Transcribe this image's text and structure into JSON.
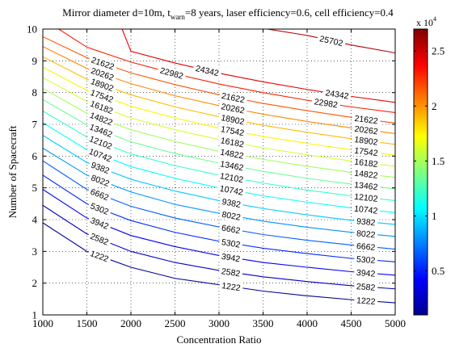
{
  "chart_data": {
    "type": "contour",
    "title": {
      "pre": "Mirror diameter d=10m, t",
      "sub": "warn",
      "post": "=8 years, laser efficiency=0.6, cell efficiency=0.4"
    },
    "xlabel": "Concentration Ratio",
    "ylabel": "Number of Spacecraft",
    "xlim": [
      1000,
      5000
    ],
    "ylim": [
      1,
      10
    ],
    "xticks": [
      "1000",
      "1500",
      "2000",
      "2500",
      "3000",
      "3500",
      "4000",
      "4500",
      "5000"
    ],
    "yticks": [
      "1",
      "2",
      "3",
      "4",
      "5",
      "6",
      "7",
      "8",
      "9",
      "10"
    ],
    "grid": true,
    "colorbar": {
      "exponent_label": "x 10",
      "exponent": "4",
      "range": [
        0.1,
        2.7
      ],
      "ticks": [
        "0.5",
        "1",
        "1.5",
        "2",
        "2.5"
      ],
      "colormap": [
        "#00008f",
        "#0000ff",
        "#0080ff",
        "#00ffff",
        "#80ff80",
        "#ffff00",
        "#ff8000",
        "#ff0000",
        "#800000"
      ]
    },
    "levels": [
      1222,
      2582,
      3942,
      5302,
      6662,
      8022,
      9382,
      10742,
      12102,
      13462,
      14822,
      16182,
      17542,
      18902,
      20262,
      21622,
      22982,
      24342,
      25702
    ],
    "contours": [
      {
        "level": 1222,
        "labels": [
          "1222",
          "1222",
          "1222"
        ],
        "points": [
          [
            1000,
            3.9
          ],
          [
            1500,
            3.0
          ],
          [
            2000,
            2.5
          ],
          [
            2500,
            2.15
          ],
          [
            3000,
            1.95
          ],
          [
            3500,
            1.75
          ],
          [
            4000,
            1.6
          ],
          [
            4500,
            1.48
          ],
          [
            5000,
            1.38
          ]
        ]
      },
      {
        "level": 2582,
        "labels": [
          "2582",
          "2582",
          "2582"
        ],
        "points": [
          [
            1000,
            4.45
          ],
          [
            1500,
            3.55
          ],
          [
            2000,
            3.0
          ],
          [
            2500,
            2.65
          ],
          [
            3000,
            2.4
          ],
          [
            3500,
            2.2
          ],
          [
            4000,
            2.05
          ],
          [
            4500,
            1.92
          ],
          [
            5000,
            1.82
          ]
        ]
      },
      {
        "level": 3942,
        "labels": [
          "3942",
          "3942",
          "3942"
        ],
        "points": [
          [
            1000,
            4.95
          ],
          [
            1500,
            4.05
          ],
          [
            2000,
            3.5
          ],
          [
            2500,
            3.15
          ],
          [
            3000,
            2.87
          ],
          [
            3500,
            2.65
          ],
          [
            4000,
            2.5
          ],
          [
            4500,
            2.36
          ],
          [
            5000,
            2.25
          ]
        ]
      },
      {
        "level": 5302,
        "labels": [
          "5302",
          "5302",
          "5302"
        ],
        "points": [
          [
            1000,
            5.4
          ],
          [
            1500,
            4.5
          ],
          [
            2000,
            3.97
          ],
          [
            2500,
            3.6
          ],
          [
            3000,
            3.32
          ],
          [
            3500,
            3.1
          ],
          [
            4000,
            2.93
          ],
          [
            4500,
            2.78
          ],
          [
            5000,
            2.67
          ]
        ]
      },
      {
        "level": 6662,
        "labels": [
          "6662",
          "6662",
          "6662"
        ],
        "points": [
          [
            1000,
            5.85
          ],
          [
            1500,
            4.95
          ],
          [
            2000,
            4.42
          ],
          [
            2500,
            4.05
          ],
          [
            3000,
            3.77
          ],
          [
            3500,
            3.53
          ],
          [
            4000,
            3.35
          ],
          [
            4500,
            3.2
          ],
          [
            5000,
            3.07
          ]
        ]
      },
      {
        "level": 8022,
        "labels": [
          "8022",
          "8022",
          "8022"
        ],
        "points": [
          [
            1000,
            6.25
          ],
          [
            1500,
            5.4
          ],
          [
            2000,
            4.87
          ],
          [
            2500,
            4.48
          ],
          [
            3000,
            4.2
          ],
          [
            3500,
            3.95
          ],
          [
            4000,
            3.76
          ],
          [
            4500,
            3.6
          ],
          [
            5000,
            3.47
          ]
        ]
      },
      {
        "level": 9382,
        "labels": [
          "9382",
          "9382",
          "9382"
        ],
        "points": [
          [
            1000,
            6.65
          ],
          [
            1500,
            5.8
          ],
          [
            2000,
            5.27
          ],
          [
            2500,
            4.9
          ],
          [
            3000,
            4.6
          ],
          [
            3500,
            4.35
          ],
          [
            4000,
            4.15
          ],
          [
            4500,
            3.98
          ],
          [
            5000,
            3.85
          ]
        ]
      },
      {
        "level": 10742,
        "labels": [
          "10742",
          "10742",
          "10742"
        ],
        "points": [
          [
            1000,
            7.05
          ],
          [
            1500,
            6.2
          ],
          [
            2000,
            5.67
          ],
          [
            2500,
            5.3
          ],
          [
            3000,
            5.0
          ],
          [
            3500,
            4.75
          ],
          [
            4000,
            4.55
          ],
          [
            4500,
            4.37
          ],
          [
            5000,
            4.22
          ]
        ]
      },
      {
        "level": 12102,
        "labels": [
          "12102",
          "12102",
          "12102"
        ],
        "points": [
          [
            1000,
            7.42
          ],
          [
            1500,
            6.6
          ],
          [
            2000,
            6.07
          ],
          [
            2500,
            5.7
          ],
          [
            3000,
            5.4
          ],
          [
            3500,
            5.15
          ],
          [
            4000,
            4.93
          ],
          [
            4500,
            4.75
          ],
          [
            5000,
            4.6
          ]
        ]
      },
      {
        "level": 13462,
        "labels": [
          "13462",
          "13462",
          "13462"
        ],
        "points": [
          [
            1000,
            7.78
          ],
          [
            1500,
            6.98
          ],
          [
            2000,
            6.45
          ],
          [
            2500,
            6.08
          ],
          [
            3000,
            5.78
          ],
          [
            3500,
            5.52
          ],
          [
            4000,
            5.3
          ],
          [
            4500,
            5.12
          ],
          [
            5000,
            4.97
          ]
        ]
      },
      {
        "level": 14822,
        "labels": [
          "14822",
          "14822",
          "14822"
        ],
        "points": [
          [
            1000,
            8.13
          ],
          [
            1500,
            7.35
          ],
          [
            2000,
            6.83
          ],
          [
            2500,
            6.46
          ],
          [
            3000,
            6.15
          ],
          [
            3500,
            5.9
          ],
          [
            4000,
            5.68
          ],
          [
            4500,
            5.49
          ],
          [
            5000,
            5.33
          ]
        ]
      },
      {
        "level": 16182,
        "labels": [
          "16182",
          "16182",
          "16182"
        ],
        "points": [
          [
            1000,
            8.47
          ],
          [
            1500,
            7.72
          ],
          [
            2000,
            7.2
          ],
          [
            2500,
            6.83
          ],
          [
            3000,
            6.52
          ],
          [
            3500,
            6.26
          ],
          [
            4000,
            6.04
          ],
          [
            4500,
            5.85
          ],
          [
            5000,
            5.68
          ]
        ]
      },
      {
        "level": 17542,
        "labels": [
          "17542",
          "17542",
          "17542"
        ],
        "points": [
          [
            1000,
            8.8
          ],
          [
            1500,
            8.07
          ],
          [
            2000,
            7.57
          ],
          [
            2500,
            7.2
          ],
          [
            3000,
            6.88
          ],
          [
            3500,
            6.62
          ],
          [
            4000,
            6.4
          ],
          [
            4500,
            6.2
          ],
          [
            5000,
            6.03
          ]
        ]
      },
      {
        "level": 18902,
        "labels": [
          "18902",
          "18902",
          "18902"
        ],
        "points": [
          [
            1000,
            9.13
          ],
          [
            1500,
            8.42
          ],
          [
            2000,
            7.93
          ],
          [
            2500,
            7.55
          ],
          [
            3000,
            7.24
          ],
          [
            3500,
            6.97
          ],
          [
            4000,
            6.75
          ],
          [
            4500,
            6.55
          ],
          [
            5000,
            6.37
          ]
        ]
      },
      {
        "level": 20262,
        "labels": [
          "20262",
          "20262",
          "20262"
        ],
        "points": [
          [
            1000,
            9.45
          ],
          [
            1500,
            8.76
          ],
          [
            2000,
            8.28
          ],
          [
            2500,
            7.9
          ],
          [
            3000,
            7.59
          ],
          [
            3500,
            7.32
          ],
          [
            4000,
            7.09
          ],
          [
            4500,
            6.89
          ],
          [
            5000,
            6.71
          ]
        ]
      },
      {
        "level": 21622,
        "labels": [
          "21622",
          "21622",
          "21622"
        ],
        "points": [
          [
            1000,
            9.76
          ],
          [
            1500,
            9.1
          ],
          [
            2000,
            8.62
          ],
          [
            2500,
            8.25
          ],
          [
            3000,
            7.93
          ],
          [
            3500,
            7.66
          ],
          [
            4000,
            7.43
          ],
          [
            4500,
            7.22
          ],
          [
            5000,
            7.04
          ]
        ]
      },
      {
        "level": 22982,
        "labels": [
          "22982",
          "22982"
        ],
        "points": [
          [
            1180,
            10.0
          ],
          [
            1500,
            9.43
          ],
          [
            2000,
            8.96
          ],
          [
            2500,
            8.59
          ],
          [
            3000,
            8.27
          ],
          [
            3500,
            8.0
          ],
          [
            4000,
            7.76
          ],
          [
            4500,
            7.55
          ],
          [
            5000,
            7.37
          ]
        ]
      },
      {
        "level": 24342,
        "labels": [
          "24342",
          "24342"
        ],
        "points": [
          [
            1900,
            10.0
          ],
          [
            2000,
            9.3
          ],
          [
            2500,
            8.93
          ],
          [
            3000,
            8.61
          ],
          [
            3500,
            8.34
          ],
          [
            4000,
            8.1
          ],
          [
            4500,
            7.88
          ],
          [
            5000,
            7.69
          ]
        ]
      },
      {
        "level": 25702,
        "labels": [
          "25702"
        ],
        "points": [
          [
            3550,
            10.0
          ],
          [
            4000,
            9.8
          ],
          [
            4500,
            9.5
          ],
          [
            5000,
            9.25
          ]
        ]
      }
    ]
  }
}
